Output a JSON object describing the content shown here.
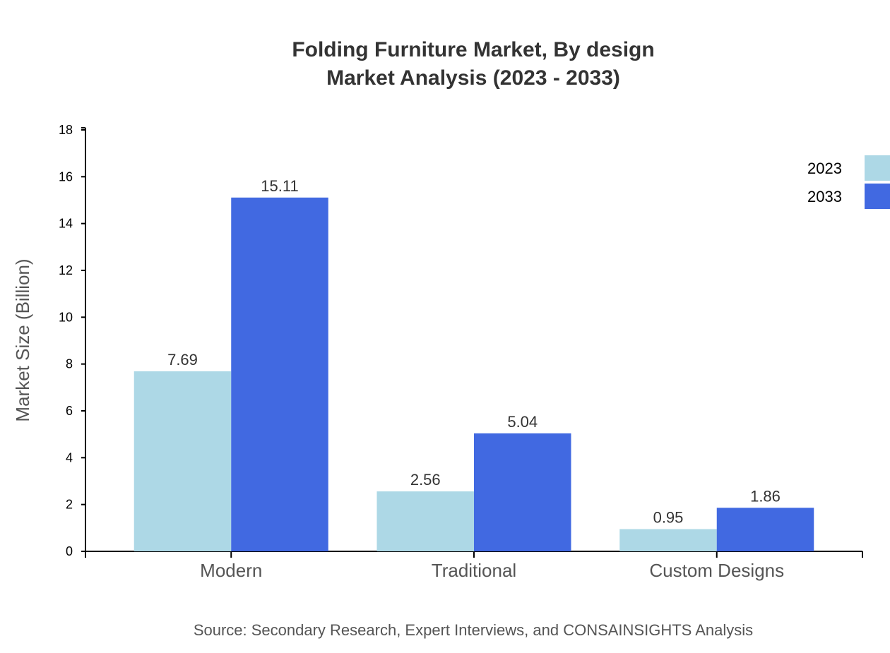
{
  "chart_data": {
    "type": "bar",
    "title": "Folding Furniture Market, By design",
    "subtitle": "Market Analysis (2023 - 2033)",
    "xlabel": "",
    "ylabel": "Market Size (Billion)",
    "ylim": [
      0,
      18
    ],
    "yticks": [
      0,
      2,
      4,
      6,
      8,
      10,
      12,
      14,
      16,
      18
    ],
    "categories": [
      "Modern",
      "Traditional",
      "Custom Designs"
    ],
    "series": [
      {
        "name": "2023",
        "color": "#add8e6",
        "values": [
          7.69,
          2.56,
          0.95
        ]
      },
      {
        "name": "2033",
        "color": "#4169e1",
        "values": [
          15.11,
          5.04,
          1.86
        ]
      }
    ],
    "legend_position": "top-right",
    "grid": false,
    "source": "Source: Secondary Research, Expert Interviews, and CONSAINSIGHTS Analysis"
  }
}
